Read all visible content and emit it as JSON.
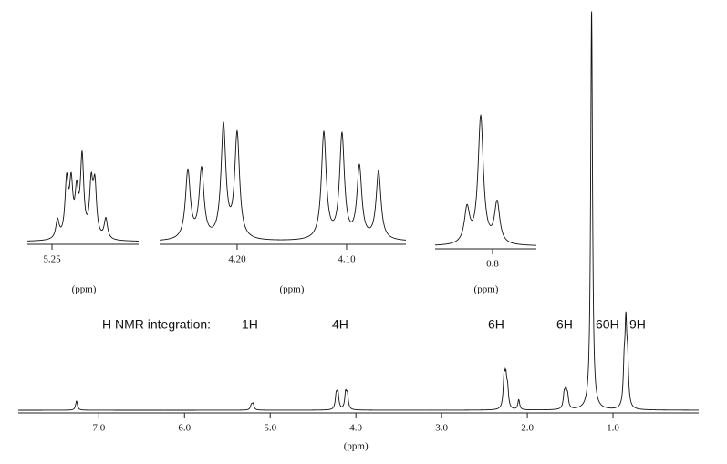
{
  "chart_data": [
    {
      "type": "spectrum",
      "x_label": "(ppm)",
      "xlim": [
        7.94,
        0
      ],
      "ylim": [
        0,
        100
      ],
      "xticks": [
        {
          "value": 7,
          "label": "7.0"
        },
        {
          "value": 6,
          "label": "6.0"
        },
        {
          "value": 5,
          "label": "5.0"
        },
        {
          "value": 4,
          "label": "4.0"
        },
        {
          "value": 3,
          "label": "3.0"
        },
        {
          "value": 2,
          "label": "2.0"
        },
        {
          "value": 1,
          "label": "1.0"
        }
      ],
      "peaks": {
        "x": [
          7.26,
          5.22,
          5.2,
          4.23,
          4.21,
          4.12,
          4.1,
          2.27,
          2.25,
          2.23,
          2.1,
          1.57,
          1.55,
          1.53,
          1.25,
          0.87,
          0.85,
          0.83
        ],
        "values": [
          2.3,
          1.2,
          1.5,
          3.5,
          4,
          4,
          3.5,
          8,
          6.5,
          4.5,
          2.5,
          3.5,
          4,
          3,
          100,
          9,
          19,
          10
        ]
      },
      "annotations": [
        "H NMR integration:",
        "1H",
        "4H",
        "6H",
        "6H",
        "60H",
        "9H"
      ]
    },
    {
      "type": "spectrum",
      "x_label": "(ppm)",
      "xlim": [
        5.2886,
        5.1143
      ],
      "ylim": [
        0,
        100
      ],
      "xticks": [
        5.25
      ],
      "peaks": {
        "x": [
          5.2414,
          5.2271,
          5.22,
          5.2114,
          5.2029,
          5.1886,
          5.1829,
          5.1657
        ],
        "values": [
          20,
          60,
          55,
          45,
          85,
          55,
          55,
          22
        ]
      }
    },
    {
      "type": "spectrum",
      "x_label": "(ppm)",
      "xlim": [
        4.2708,
        4.0458
      ],
      "ylim": [
        0,
        130
      ],
      "xticks": [
        {
          "value": 4.2,
          "label": "4.20"
        },
        {
          "value": 4.1,
          "label": "4.10"
        }
      ],
      "peaks": {
        "x": [
          4.245,
          4.2325,
          4.2125,
          4.2,
          4.1208,
          4.1042,
          4.0883,
          4.0708
        ],
        "values": [
          75,
          76,
          124,
          115,
          117,
          114,
          79,
          75
        ]
      }
    },
    {
      "type": "spectrum",
      "x_label": "(ppm)",
      "xlim": [
        0.863,
        0.752
      ],
      "ylim": [
        0,
        150
      ],
      "xticks": [
        0.8
      ],
      "peaks": {
        "x": [
          0.828,
          0.813,
          0.795
        ],
        "values": [
          38,
          140,
          45
        ]
      }
    }
  ]
}
